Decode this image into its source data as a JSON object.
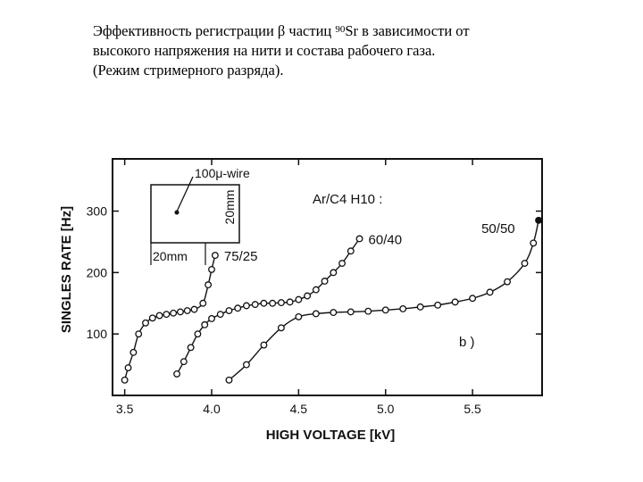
{
  "caption": {
    "line1_before": "Эффективность регистрации β частиц ",
    "isotope_mass": "90",
    "line1_after": "Sr в зависимости от",
    "line2": "высокого напряжения на нити и состава рабочего газа.",
    "line3": "(Режим стримерного разряда)."
  },
  "chart_data": {
    "type": "line",
    "title": "",
    "xlabel": "HIGH VOLTAGE [kV]",
    "ylabel": "SINGLES RATE [Hz]",
    "xlim": [
      3.43,
      5.9
    ],
    "ylim": [
      0,
      385
    ],
    "x_ticks": [
      3.5,
      4.0,
      4.5,
      5.0,
      5.5
    ],
    "x_tick_labels": [
      "3.5",
      "4.0",
      "4.5",
      "5.0",
      "5.5"
    ],
    "y_ticks": [
      100,
      200,
      300
    ],
    "y_tick_labels": [
      "100",
      "200",
      "300"
    ],
    "grid": false,
    "legend_title": "Ar/C4 H10 :",
    "panel_label": "b )",
    "inset": {
      "wire_label": "100μ-wire",
      "width_label": "20mm",
      "height_label": "20mm"
    },
    "series": [
      {
        "name": "75/25",
        "x": [
          3.5,
          3.52,
          3.55,
          3.58,
          3.62,
          3.66,
          3.7,
          3.74,
          3.78,
          3.82,
          3.86,
          3.9,
          3.95,
          3.98,
          4.0,
          4.02
        ],
        "y": [
          25,
          45,
          70,
          100,
          118,
          126,
          130,
          132,
          134,
          136,
          138,
          140,
          150,
          180,
          205,
          228
        ]
      },
      {
        "name": "60/40",
        "x": [
          3.8,
          3.84,
          3.88,
          3.92,
          3.96,
          4.0,
          4.05,
          4.1,
          4.15,
          4.2,
          4.25,
          4.3,
          4.35,
          4.4,
          4.45,
          4.5,
          4.55,
          4.6,
          4.65,
          4.7,
          4.75,
          4.8,
          4.85
        ],
        "y": [
          35,
          55,
          78,
          100,
          115,
          125,
          132,
          138,
          142,
          146,
          148,
          150,
          150,
          151,
          152,
          156,
          162,
          172,
          186,
          200,
          215,
          235,
          255
        ]
      },
      {
        "name": "50/50",
        "x": [
          4.1,
          4.2,
          4.3,
          4.4,
          4.5,
          4.6,
          4.7,
          4.8,
          4.9,
          5.0,
          5.1,
          5.2,
          5.3,
          5.4,
          5.5,
          5.6,
          5.7,
          5.8,
          5.85,
          5.88
        ],
        "y": [
          25,
          50,
          82,
          110,
          128,
          133,
          135,
          136,
          137,
          139,
          141,
          144,
          147,
          152,
          158,
          168,
          185,
          215,
          248,
          285
        ]
      }
    ]
  }
}
